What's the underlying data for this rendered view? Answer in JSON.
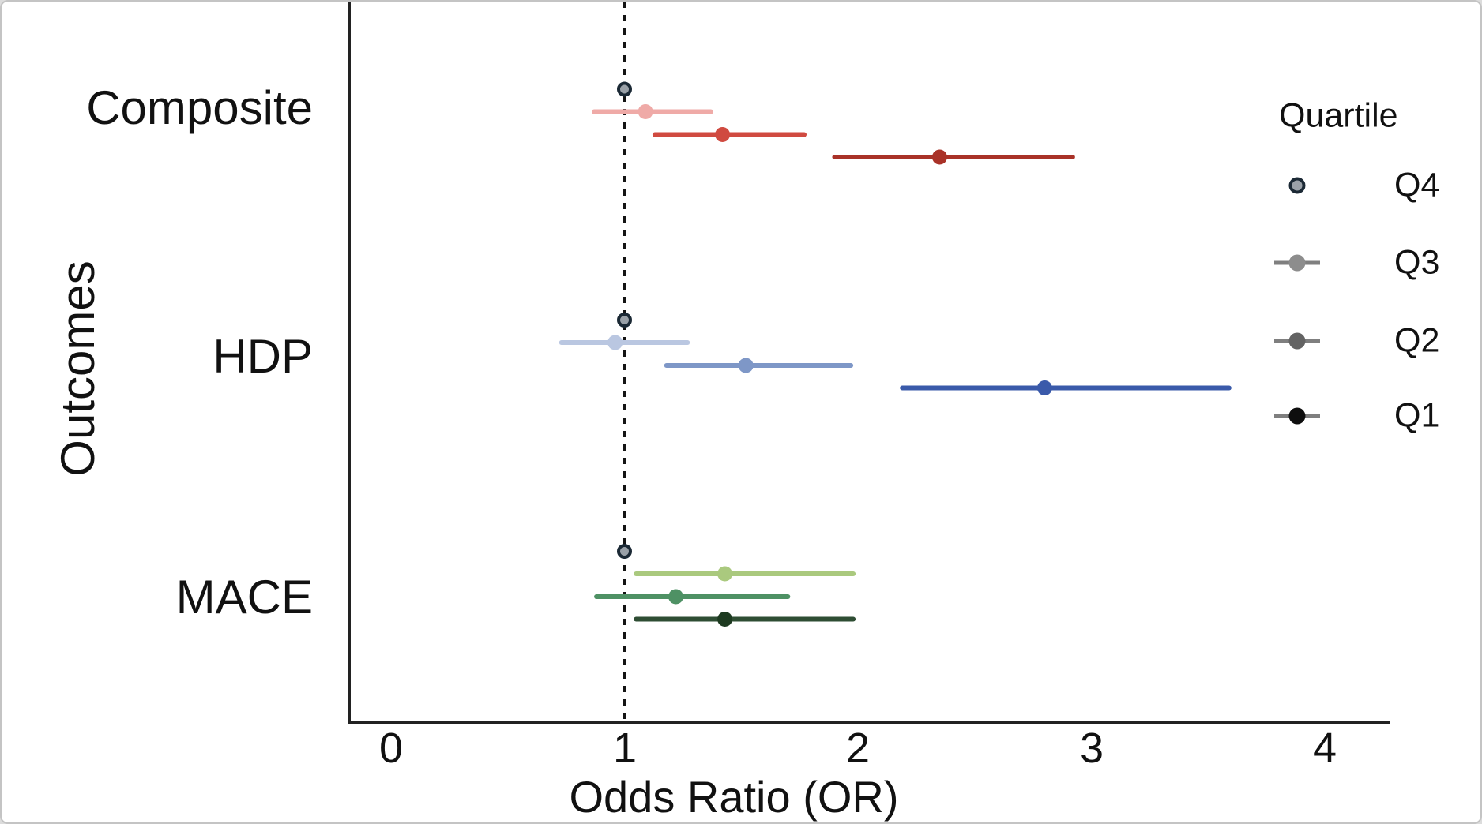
{
  "chart_data": {
    "type": "forest",
    "xlabel": "Odds Ratio (OR)",
    "ylabel": "Outcomes",
    "x_ticks": [
      0,
      1,
      2,
      3,
      4
    ],
    "x_tick_labels": [
      "0",
      "1",
      "2",
      "3",
      "4"
    ],
    "xlim": [
      -0.18,
      4.28
    ],
    "reference_line_x": 1.0,
    "grid": false,
    "reference_marker": {
      "fill": "#9aa1a8",
      "stroke": "#1b2935"
    },
    "groups": [
      {
        "label": "Composite",
        "series": [
          {
            "quartile": "Q4",
            "or": 1.0,
            "reference": true
          },
          {
            "quartile": "Q3",
            "or": 1.09,
            "ci_low": 0.87,
            "ci_high": 1.37,
            "color": "#efaaa7"
          },
          {
            "quartile": "Q2",
            "or": 1.42,
            "ci_low": 1.13,
            "ci_high": 1.77,
            "color": "#d04a40"
          },
          {
            "quartile": "Q1",
            "or": 2.35,
            "ci_low": 1.9,
            "ci_high": 2.92,
            "color": "#a93228"
          }
        ]
      },
      {
        "label": "HDP",
        "series": [
          {
            "quartile": "Q4",
            "or": 1.0,
            "reference": true
          },
          {
            "quartile": "Q3",
            "or": 0.96,
            "ci_low": 0.73,
            "ci_high": 1.27,
            "color": "#bac7e1"
          },
          {
            "quartile": "Q2",
            "or": 1.52,
            "ci_low": 1.18,
            "ci_high": 1.97,
            "color": "#7e97c7"
          },
          {
            "quartile": "Q1",
            "or": 2.8,
            "ci_low": 2.19,
            "ci_high": 3.59,
            "color": "#3a5aaa"
          }
        ]
      },
      {
        "label": "MACE",
        "series": [
          {
            "quartile": "Q4",
            "or": 1.0,
            "reference": true
          },
          {
            "quartile": "Q3",
            "or": 1.43,
            "ci_low": 1.05,
            "ci_high": 1.98,
            "color": "#aac97e"
          },
          {
            "quartile": "Q2",
            "or": 1.22,
            "ci_low": 0.88,
            "ci_high": 1.7,
            "color": "#4e9164"
          },
          {
            "quartile": "Q1",
            "or": 1.43,
            "ci_low": 1.05,
            "ci_high": 1.98,
            "color": "#2e4d33",
            "dot_color": "#1d3a20"
          }
        ]
      }
    ],
    "legend": {
      "title": "Quartile",
      "items": [
        {
          "label": "Q4",
          "marker": "dot",
          "dot_fill": "#9aa1a8",
          "dot_stroke": "#1b2935"
        },
        {
          "label": "Q3",
          "marker": "dot-line",
          "dot_fill": "#8d8d8d",
          "line_color": "#7f7f7f"
        },
        {
          "label": "Q2",
          "marker": "dot-line",
          "dot_fill": "#636363",
          "line_color": "#7f7f7f"
        },
        {
          "label": "Q1",
          "marker": "dot-line",
          "dot_fill": "#0e0e0e",
          "line_color": "#7f7f7f"
        }
      ]
    },
    "axis_color": "#222222",
    "reference_line_color": "#141414"
  }
}
